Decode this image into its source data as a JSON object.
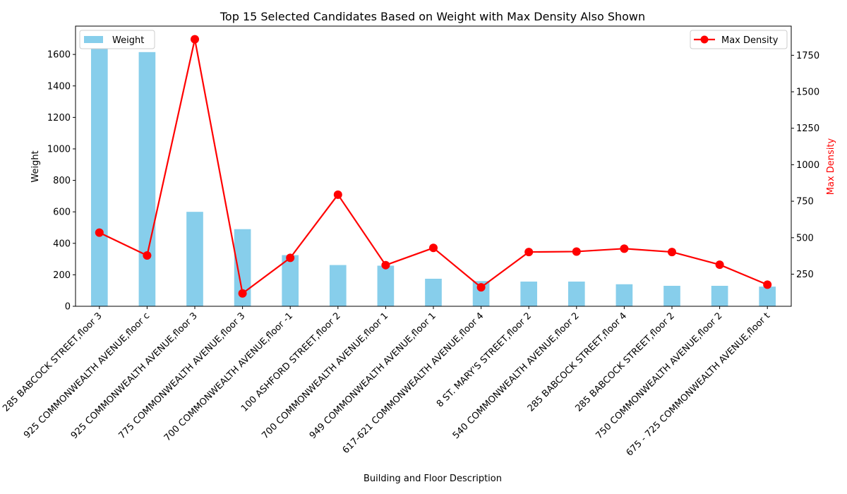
{
  "chart_data": {
    "type": "bar",
    "title": "Top 15 Selected Candidates Based on Weight with Max Density Also Shown",
    "xlabel": "Building and Floor Description",
    "ylabel": "Weight",
    "y2label": "Max Density",
    "categories": [
      "285 BABCOCK STREET,floor 3",
      "925 COMMONWEALTH AVENUE,floor c",
      "925 COMMONWEALTH AVENUE,floor 3",
      "775 COMMONWEALTH AVENUE,floor 3",
      "700 COMMONWEALTH AVENUE,floor -1",
      "100 ASHFORD STREET,floor 2",
      "700 COMMONWEALTH AVENUE,floor 1",
      "949 COMMONWEALTH AVENUE,floor 1",
      "617-621 COMMONWEALTH AVENUE,floor 4",
      "8 ST. MARY'S STREET,floor 2",
      "540 COMMONWEALTH AVENUE,floor 2",
      "285 BABCOCK STREET,floor 4",
      "285 BABCOCK STREET,floor 2",
      "750 COMMONWEALTH AVENUE,floor 2",
      "675 - 725 COMMONWEALTH AVENUE,floor t"
    ],
    "series": [
      {
        "name": "Weight",
        "type": "bar",
        "axis": "left",
        "color": "#87ceeb",
        "values": [
          1700,
          1615,
          600,
          490,
          325,
          262,
          258,
          175,
          160,
          157,
          157,
          140,
          130,
          130,
          125
        ]
      },
      {
        "name": "Max Density",
        "type": "line",
        "axis": "right",
        "color": "#ff0000",
        "values": [
          535,
          378,
          1860,
          118,
          362,
          795,
          312,
          430,
          160,
          402,
          405,
          425,
          402,
          315,
          178
        ]
      }
    ],
    "ylim": [
      0,
      1780
    ],
    "yticks": [
      0,
      200,
      400,
      600,
      800,
      1000,
      1200,
      1400,
      1600
    ],
    "y2lim": [
      30,
      1950
    ],
    "y2ticks": [
      250,
      500,
      750,
      1000,
      1250,
      1500,
      1750
    ],
    "grid": false,
    "legend_bar_position": "top-left",
    "legend_line_position": "top-right"
  }
}
